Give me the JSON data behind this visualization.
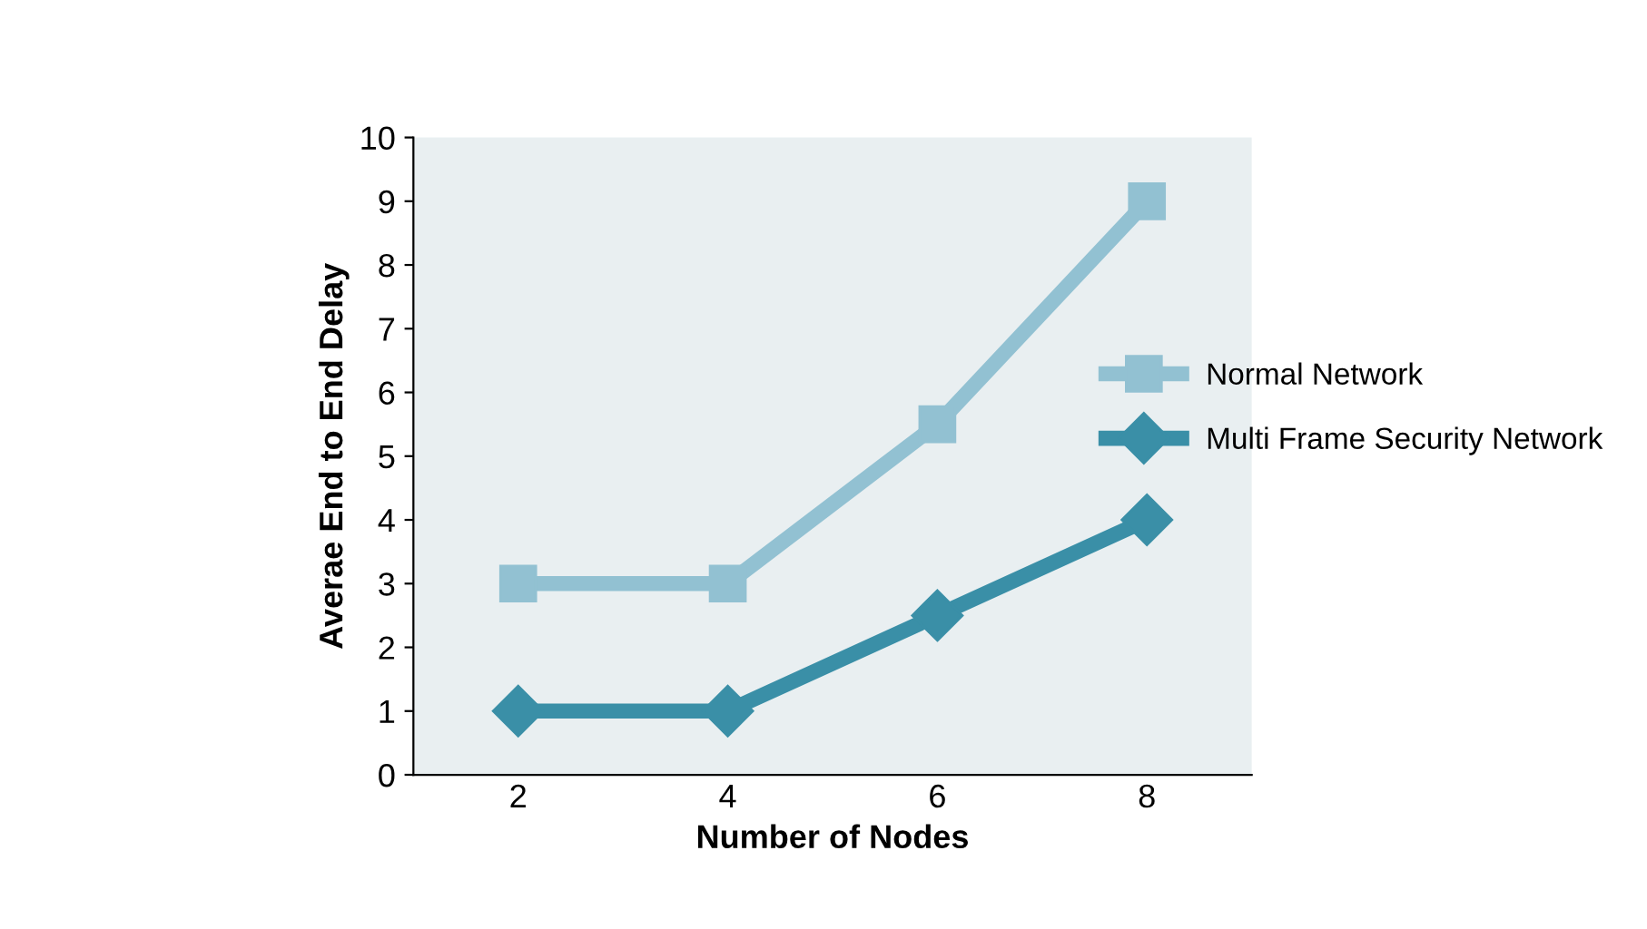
{
  "chart_data": {
    "type": "line",
    "xlabel": "Number of Nodes",
    "ylabel": "Averae End to End Delay",
    "categories": [
      "2",
      "4",
      "6",
      "8"
    ],
    "series": [
      {
        "name": "Normal Network",
        "color": "#92c1d2",
        "values": [
          3,
          3,
          5.5,
          9
        ],
        "marker": "square"
      },
      {
        "name": "Multi Frame Security Network",
        "color": "#3a8fa7",
        "values": [
          1,
          1,
          2.5,
          4
        ],
        "marker": "diamond"
      }
    ],
    "ylim": [
      0,
      10
    ],
    "yticks": [
      0,
      1,
      2,
      3,
      4,
      5,
      6,
      7,
      8,
      9,
      10
    ],
    "grid": false,
    "legend": "right",
    "line_style": "solid"
  }
}
